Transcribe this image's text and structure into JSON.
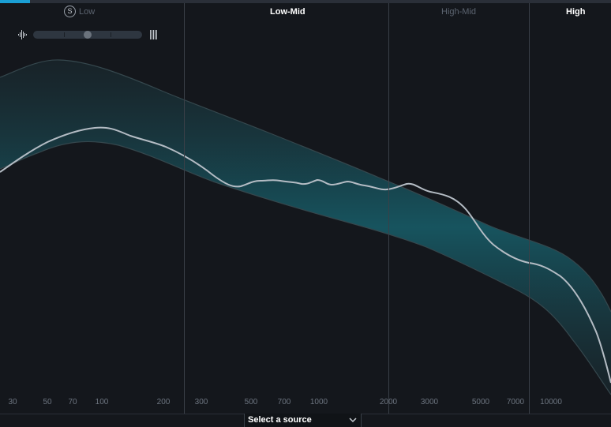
{
  "bands": {
    "low": "Low",
    "low_mid": "Low-Mid",
    "high_mid": "High-Mid",
    "high": "High"
  },
  "solo_icon_letter": "S",
  "width_slider": {
    "value": 0.5,
    "left_icon": "narrow-width-icon",
    "right_icon": "wide-width-icon"
  },
  "frequency_axis": [
    "30",
    "50",
    "70",
    "100",
    "200",
    "300",
    "500",
    "700",
    "1000",
    "2000",
    "3000",
    "5000",
    "7000",
    "10000"
  ],
  "source_select": {
    "label": "Select a source",
    "icon": "chevron-down-icon"
  },
  "colors": {
    "background": "#14171c",
    "accent": "#1a9fd4",
    "target_band": "#1d5a63",
    "spectrum_line": "#b4bcc4"
  }
}
